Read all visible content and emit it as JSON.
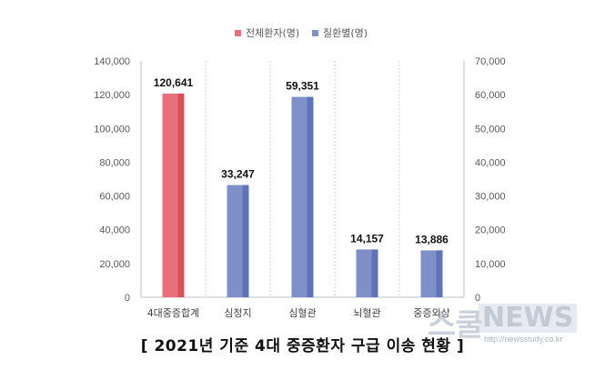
{
  "legend": {
    "items": [
      {
        "label": "전체환자(명)",
        "color": "#e8707a"
      },
      {
        "label": "질환별(명)",
        "color": "#7f90c9"
      }
    ]
  },
  "caption": "[ 2021년 기준 4대 중증환자 구급 이송 현황 ]",
  "watermark": {
    "logo": "스쿨",
    "brand": "NEWS",
    "url": "http://newsstudy.co.kr"
  },
  "chart_data": {
    "type": "bar",
    "categories": [
      "4대중증합계",
      "심정지",
      "심혈관",
      "뇌혈관",
      "중증외상"
    ],
    "series": [
      {
        "name": "전체환자(명)",
        "axis": "left",
        "values": [
          120641,
          null,
          null,
          null,
          null
        ],
        "color": "#e8707a"
      },
      {
        "name": "질환별(명)",
        "axis": "right",
        "values": [
          null,
          33247,
          59351,
          14157,
          13886
        ],
        "color": "#7f90c9"
      }
    ],
    "data_labels": [
      "120,641",
      "33,247",
      "59,351",
      "14,157",
      "13,886"
    ],
    "y_left": {
      "ylim": [
        0,
        140000
      ],
      "ticks": [
        "0",
        "20,000",
        "40,000",
        "60,000",
        "80,000",
        "100,000",
        "120,000",
        "140,000"
      ]
    },
    "y_right": {
      "ylim": [
        0,
        70000
      ],
      "ticks": [
        "0",
        "10,000",
        "20,000",
        "30,000",
        "40,000",
        "50,000",
        "60,000",
        "70,000"
      ]
    },
    "grid": "vertical-dashed",
    "legend_position": "top-center"
  }
}
